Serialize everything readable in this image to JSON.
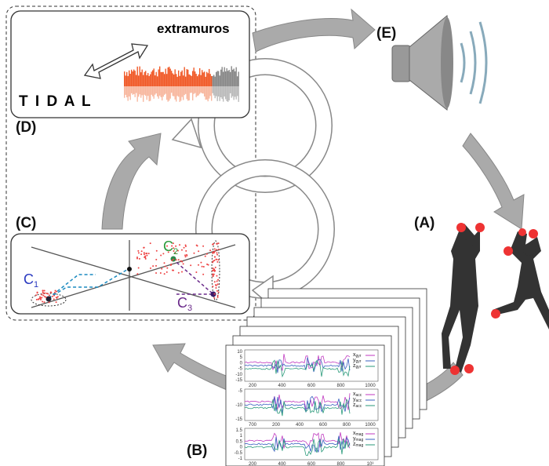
{
  "labels": {
    "a": "(A)",
    "b": "(B)",
    "c": "(C)",
    "d": "(D)",
    "e": "(E)"
  },
  "tidal": {
    "title": "extramuros",
    "logo": "T I D A L"
  },
  "clusters": [
    {
      "name": "C",
      "sub": "1"
    },
    {
      "name": "C",
      "sub": "2"
    },
    {
      "name": "C",
      "sub": "3"
    }
  ],
  "plots": [
    {
      "yticks": [
        "10",
        "5",
        "0",
        "-5",
        "-10",
        "-15"
      ],
      "xticks": [
        "200",
        "400",
        "600",
        "800",
        "1000"
      ],
      "legend": [
        {
          "base": "x",
          "sub": "gyr"
        },
        {
          "base": "y",
          "sub": "gyr"
        },
        {
          "base": "z",
          "sub": "gyr"
        }
      ]
    },
    {
      "yticks": [
        "-5",
        "-10",
        "-15"
      ],
      "xticks": [
        "700",
        "200",
        "400",
        "600",
        "800",
        "1000"
      ],
      "legend": [
        {
          "base": "x",
          "sub": "acc"
        },
        {
          "base": "y",
          "sub": "acc"
        },
        {
          "base": "z",
          "sub": "acc"
        }
      ]
    },
    {
      "yticks": [
        "1.5",
        "1",
        "0.5",
        "0",
        "-0.5",
        "-1"
      ],
      "xticks": [
        "200",
        "400",
        "600",
        "800",
        "10³"
      ],
      "legend": [
        {
          "base": "x",
          "sub": "mag"
        },
        {
          "base": "y",
          "sub": "mag"
        },
        {
          "base": "z",
          "sub": "mag"
        }
      ]
    }
  ]
}
